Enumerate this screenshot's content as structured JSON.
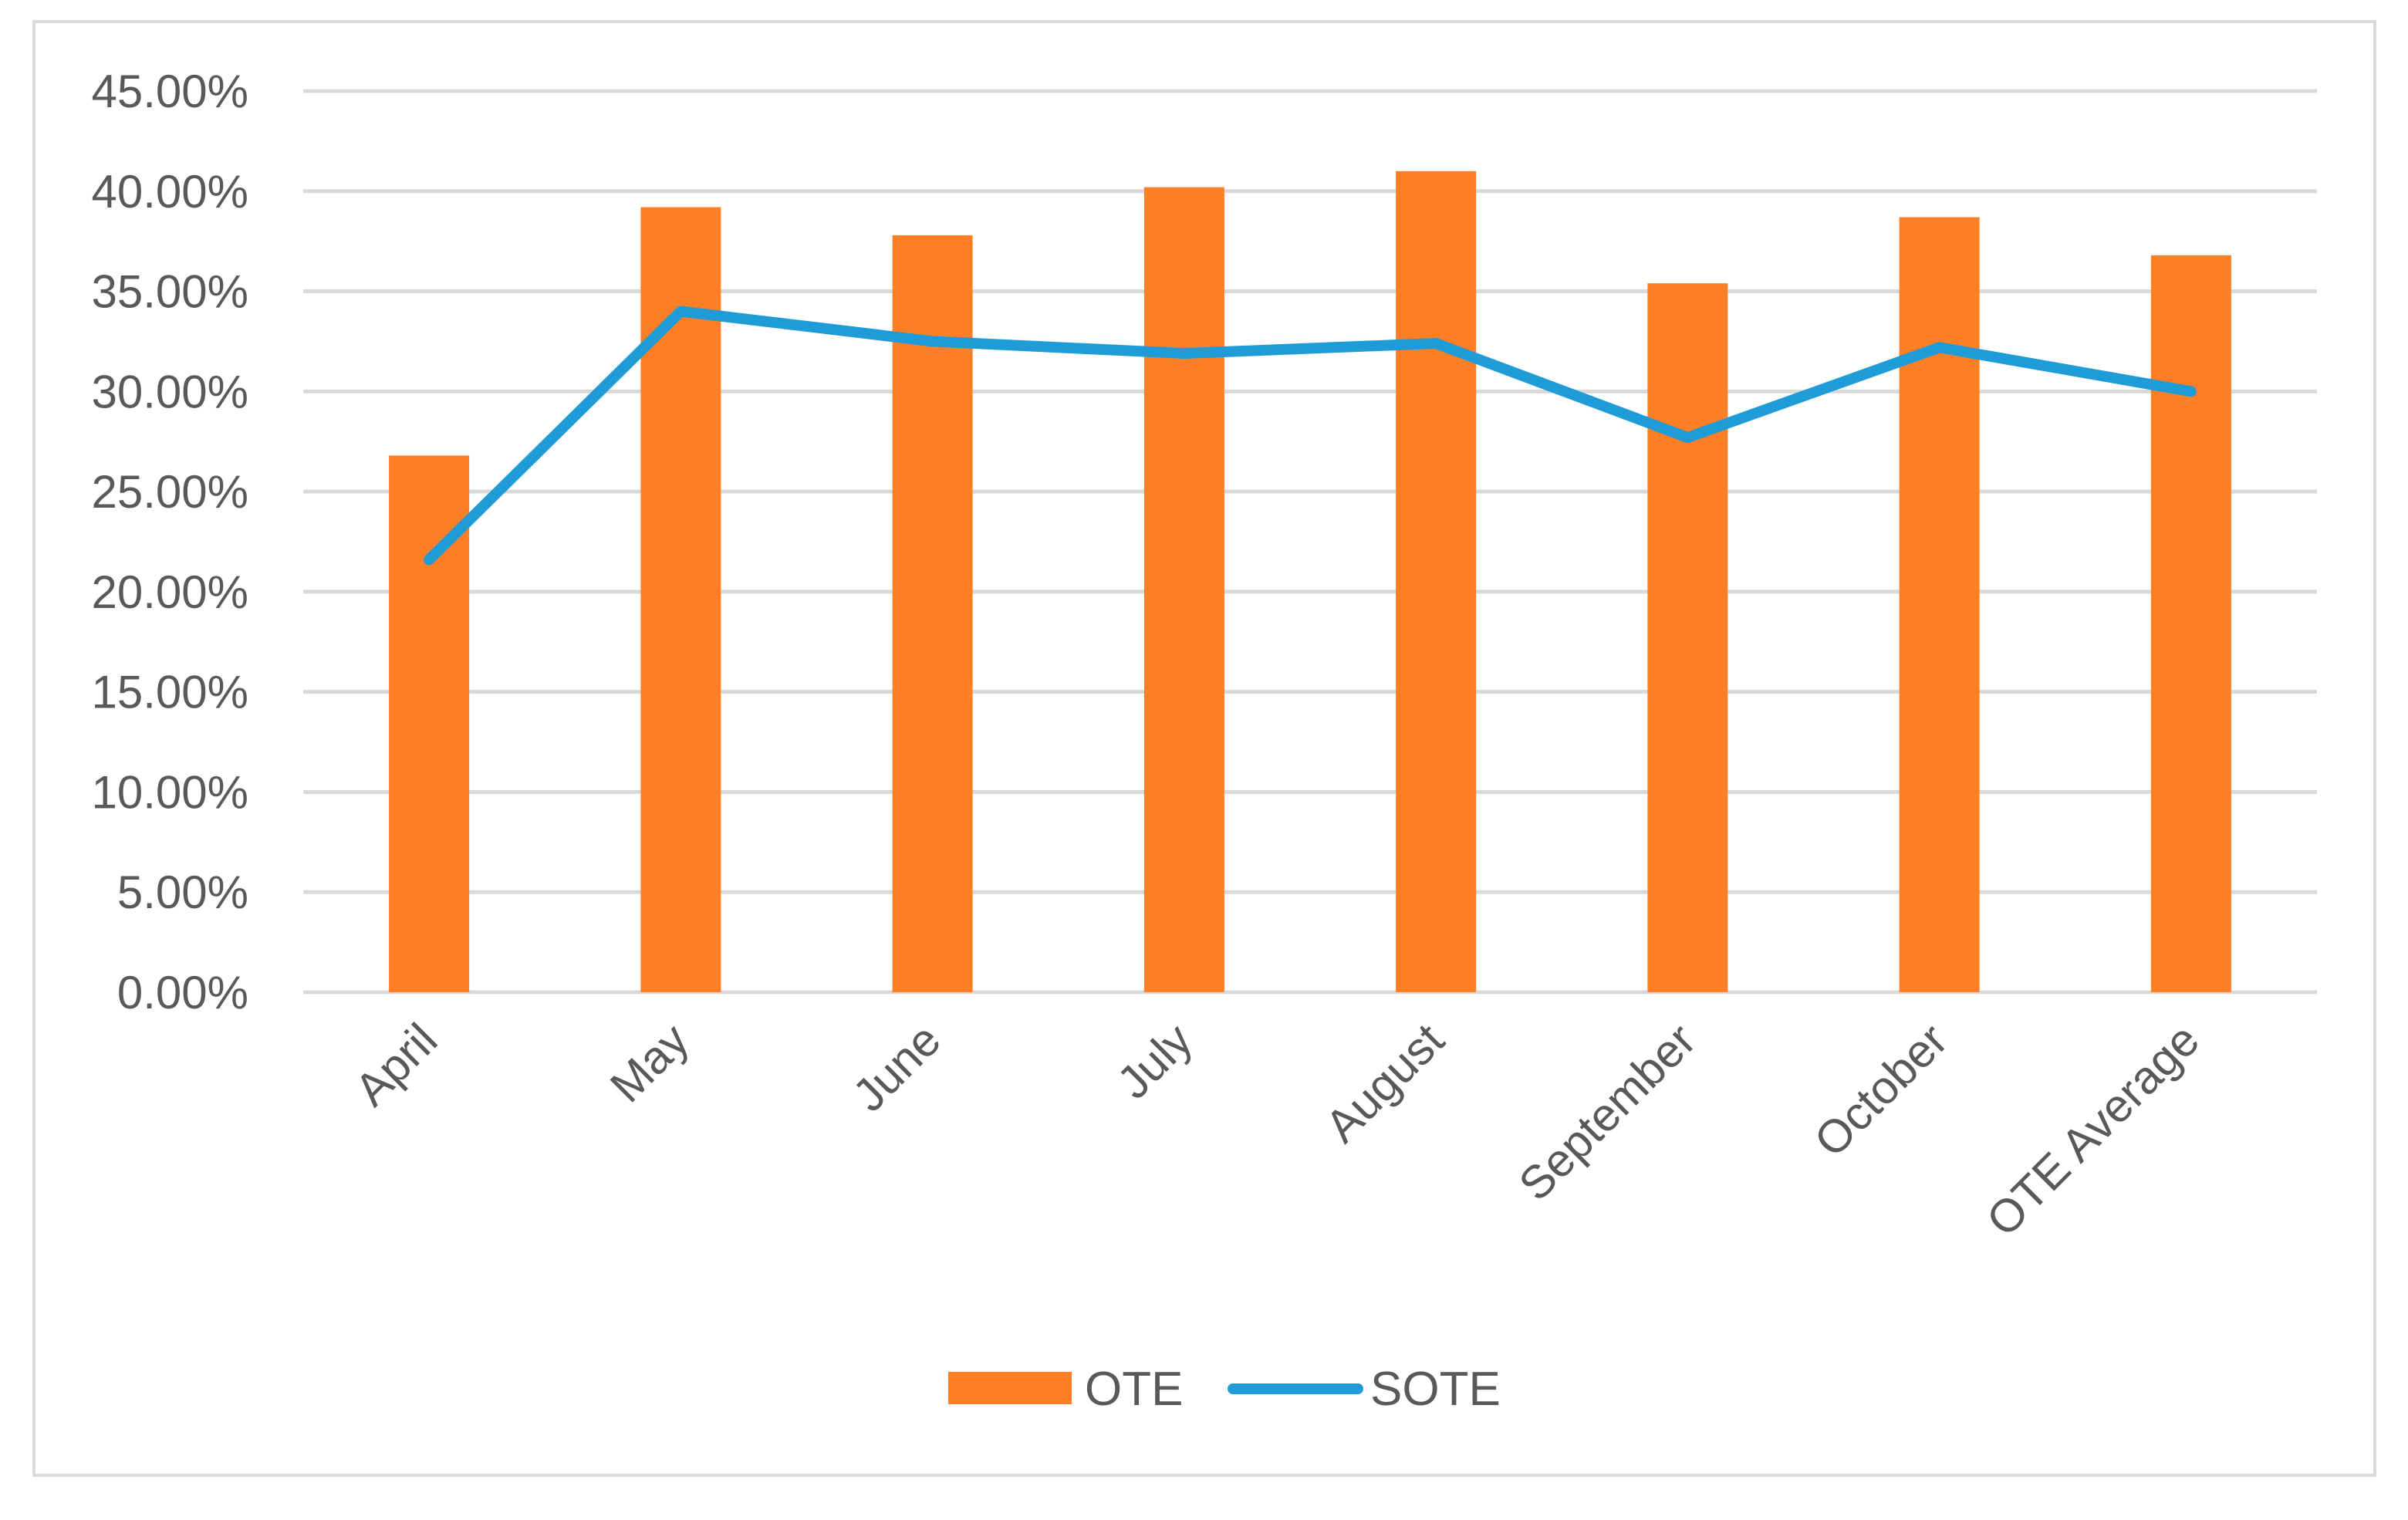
{
  "chart_data": {
    "type": "bar",
    "title": "",
    "xlabel": "",
    "ylabel": "",
    "categories": [
      "April",
      "May",
      "June",
      "July",
      "August",
      "September",
      "October",
      "OTE Average"
    ],
    "series": [
      {
        "name": "OTE",
        "type": "bar",
        "color": "#FF7F27",
        "values": [
          0.268,
          0.392,
          0.378,
          0.402,
          0.41,
          0.354,
          0.387,
          0.368
        ]
      },
      {
        "name": "SOTE",
        "type": "line",
        "color": "#1F9BD7",
        "values": [
          0.216,
          0.34,
          0.325,
          0.319,
          0.324,
          0.277,
          0.322,
          0.3
        ]
      }
    ],
    "ylim": [
      0,
      0.45
    ],
    "yticks": [
      0,
      0.05,
      0.1,
      0.15,
      0.2,
      0.25,
      0.3,
      0.35,
      0.4,
      0.45
    ],
    "ytick_labels": [
      "0.00%",
      "5.00%",
      "10.00%",
      "15.00%",
      "20.00%",
      "25.00%",
      "30.00%",
      "35.00%",
      "40.00%",
      "45.00%"
    ],
    "grid": true,
    "legend": {
      "placement": "bottom",
      "entries": [
        "OTE",
        "SOTE"
      ]
    },
    "colors": {
      "gridline": "#D9D9D9",
      "label": "#595959"
    }
  }
}
